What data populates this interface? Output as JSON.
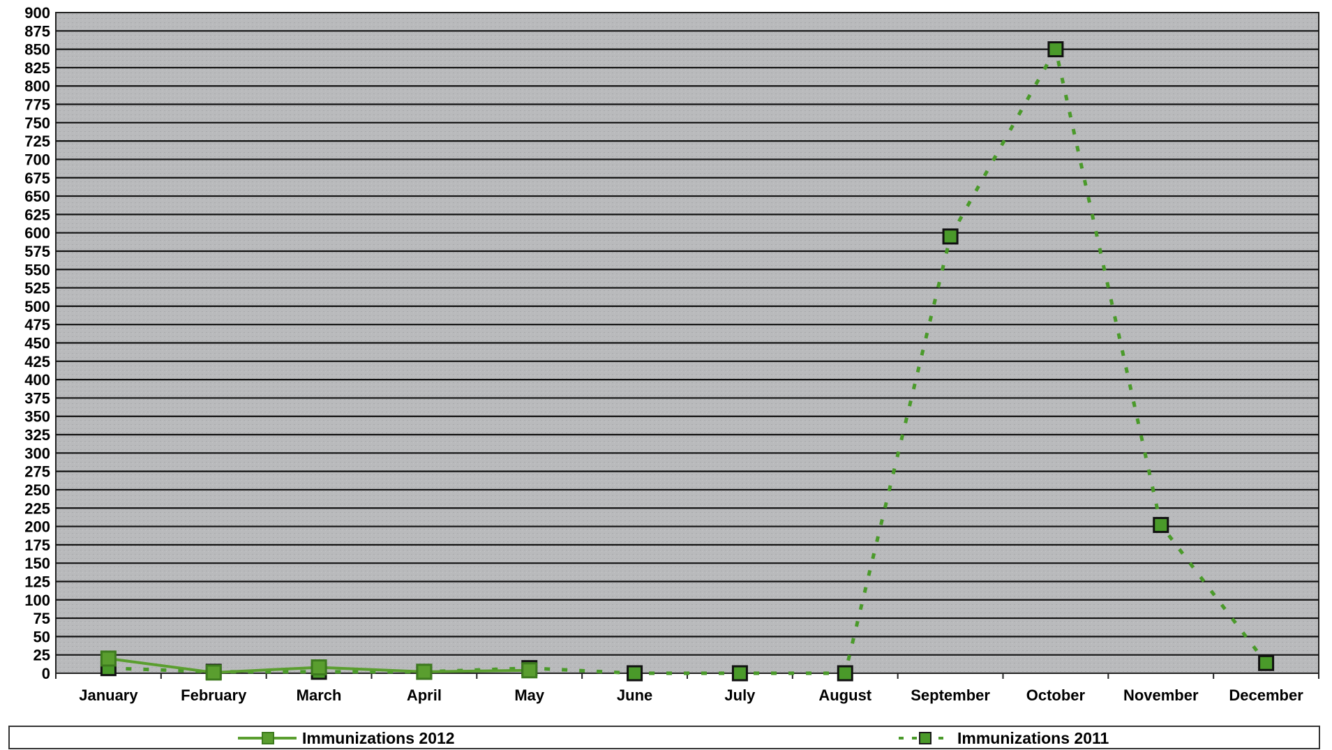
{
  "chart_data": {
    "type": "line",
    "categories": [
      "January",
      "February",
      "March",
      "April",
      "May",
      "June",
      "July",
      "August",
      "September",
      "October",
      "November",
      "December"
    ],
    "series": [
      {
        "name": "Immunizations 2012",
        "values": [
          20,
          1,
          8,
          2,
          4,
          null,
          null,
          null,
          null,
          null,
          null,
          null
        ],
        "color": "#5a9e2f",
        "line": "solid"
      },
      {
        "name": "Immunizations 2011",
        "values": [
          7,
          2,
          2,
          2,
          7,
          0,
          0,
          0,
          595,
          850,
          202,
          14
        ],
        "color": "#4a9a2a",
        "line": "dotted"
      }
    ],
    "ylim": [
      0,
      900
    ],
    "yticks": [
      0,
      25,
      50,
      75,
      100,
      125,
      150,
      175,
      200,
      225,
      250,
      275,
      300,
      325,
      350,
      375,
      400,
      425,
      450,
      475,
      500,
      525,
      550,
      575,
      600,
      625,
      650,
      675,
      700,
      725,
      750,
      775,
      800,
      825,
      850,
      875,
      900
    ],
    "grid": true,
    "legend_position": "bottom"
  },
  "legend": {
    "item_2012": "Immunizations 2012",
    "item_2011": "Immunizations 2011"
  }
}
